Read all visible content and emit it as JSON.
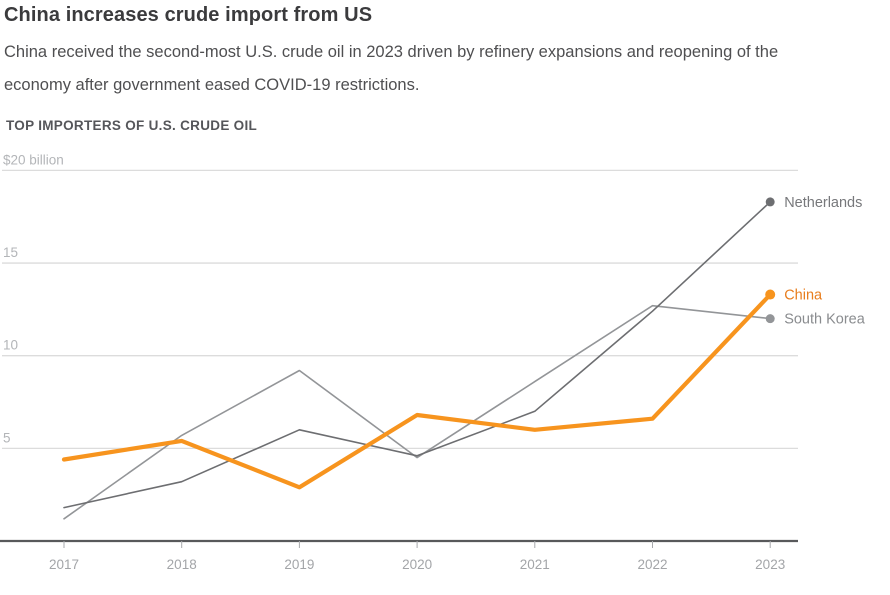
{
  "header": {
    "title": "China increases crude import from US",
    "subtitle": "China received the second-most U.S. crude oil in 2023 driven by refinery expansions and reopening of the economy after government eased COVID-19 restrictions.",
    "section_label": "TOP IMPORTERS OF U.S. CRUDE OIL"
  },
  "chart_data": {
    "type": "line",
    "title": "TOP IMPORTERS OF U.S. CRUDE OIL",
    "unit": "US$ billion",
    "x": [
      2017,
      2018,
      2019,
      2020,
      2021,
      2022,
      2023
    ],
    "y_axis": {
      "top_label": "$20 billion",
      "ticks": [
        5,
        10,
        15,
        20
      ],
      "range": [
        0,
        20
      ],
      "grid": true
    },
    "series": [
      {
        "name": "South Korea",
        "color": "#939598",
        "label_color": "#8a8c8f",
        "stroke_width": 1.6,
        "values": [
          1.2,
          5.7,
          9.2,
          4.5,
          8.6,
          12.7,
          12.0
        ]
      },
      {
        "name": "Netherlands",
        "color": "#6d6e71",
        "label_color": "#77787b",
        "stroke_width": 1.6,
        "values": [
          1.8,
          3.2,
          6.0,
          4.6,
          7.0,
          12.4,
          18.3
        ]
      },
      {
        "name": "China",
        "color": "#f7941e",
        "label_color": "#e87e1e",
        "stroke_width": 4.2,
        "values": [
          4.4,
          5.4,
          2.9,
          6.8,
          6.0,
          6.6,
          13.3
        ]
      }
    ],
    "legend_position": "end-of-line",
    "colors": {
      "gridline": "#dcdcdc",
      "axis_line": "#58595b",
      "tick_mark": "#a7a9ac"
    }
  }
}
